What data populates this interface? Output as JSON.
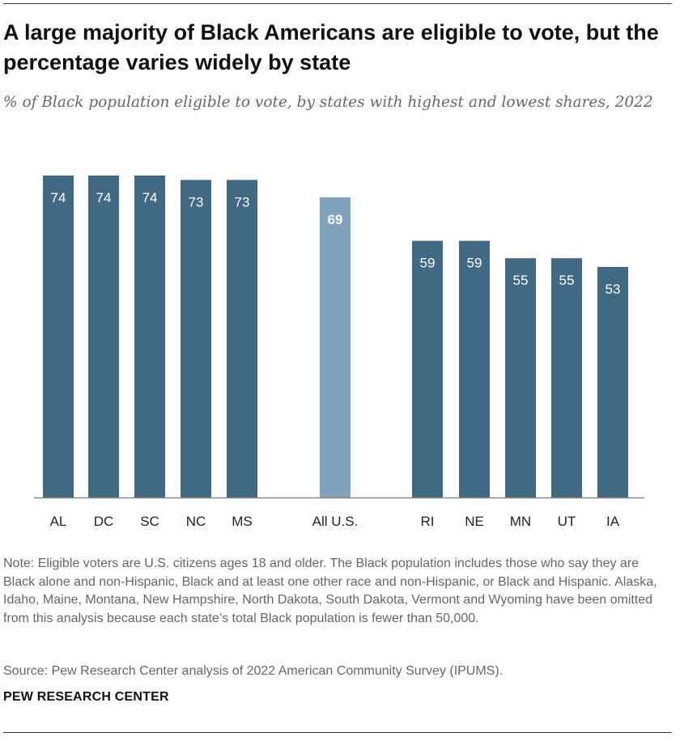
{
  "title": "A large majority of Black Americans are eligible to vote, but the percentage varies widely by state",
  "subtitle": "% of Black population eligible to vote, by states with highest and lowest shares, 2022",
  "note": "Note: Eligible voters are U.S. citizens ages 18 and older. The Black population includes those who say they are Black alone and non-Hispanic, Black and at least one other race and non-Hispanic, or Black and Hispanic. Alaska, Idaho, Maine, Montana, New Hampshire, North Dakota, South Dakota, Vermont and Wyoming have been omitted from this analysis because each state’s total Black population is fewer than 50,000.",
  "source": "Source: Pew Research Center analysis of 2022 American Community Survey (IPUMS).",
  "org": "PEW RESEARCH CENTER",
  "colors": {
    "bar": "#426983",
    "highlight": "#7fa2bf",
    "axis": "#888888",
    "label": "#ffffff"
  },
  "chart_data": {
    "type": "bar",
    "title": "A large majority of Black Americans are eligible to vote, but the percentage varies widely by state",
    "subtitle": "% of Black population eligible to vote, by states with highest and lowest shares, 2022",
    "xlabel": "",
    "ylabel": "",
    "ylim": [
      0,
      74
    ],
    "grid": false,
    "categories": [
      "AL",
      "DC",
      "SC",
      "NC",
      "MS",
      "All U.S.",
      "RI",
      "NE",
      "MN",
      "UT",
      "IA"
    ],
    "values": [
      74,
      74,
      74,
      73,
      73,
      69,
      59,
      59,
      55,
      55,
      53
    ],
    "highlight": [
      "All U.S."
    ]
  }
}
